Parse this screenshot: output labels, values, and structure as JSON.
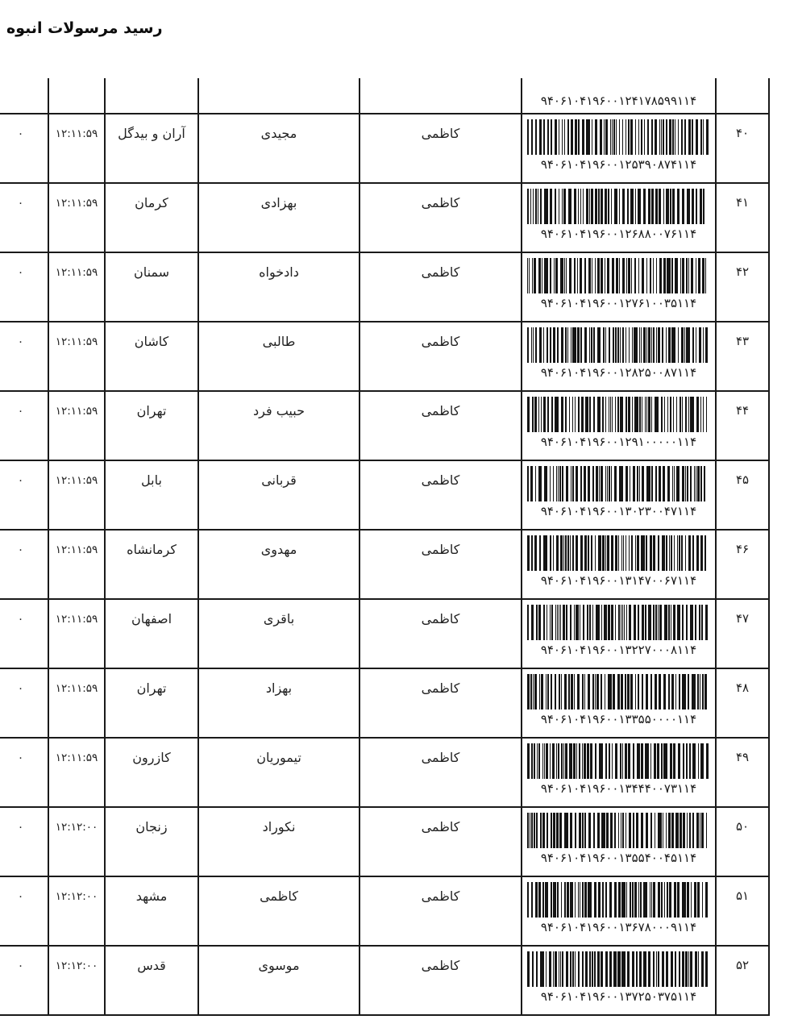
{
  "page": {
    "title": "رسید مرسولات انبوه"
  },
  "table": {
    "partial_row": {
      "code_display": "۹۴۰۶۱۰۴۱۹۶۰۰۱۲۴۱۷۸۵۹۹۱۱۴"
    },
    "rows": [
      {
        "row_no": "۴۰",
        "code_display": "۹۴۰۶۱۰۴۱۹۶۰۰۱۲۵۳۹۰۸۷۴۱۱۴",
        "sender": "کاظمی",
        "recipient": "مجیدی",
        "city": "آران و بیدگل",
        "time": "۱۲:۱۱:۵۹",
        "flag": "۰"
      },
      {
        "row_no": "۴۱",
        "code_display": "۹۴۰۶۱۰۴۱۹۶۰۰۱۲۶۸۸۰۰۷۶۱۱۴",
        "sender": "کاظمی",
        "recipient": "بهزادی",
        "city": "کرمان",
        "time": "۱۲:۱۱:۵۹",
        "flag": "۰"
      },
      {
        "row_no": "۴۲",
        "code_display": "۹۴۰۶۱۰۴۱۹۶۰۰۱۲۷۶۱۰۰۳۵۱۱۴",
        "sender": "کاظمی",
        "recipient": "دادخواه",
        "city": "سمنان",
        "time": "۱۲:۱۱:۵۹",
        "flag": "۰"
      },
      {
        "row_no": "۴۳",
        "code_display": "۹۴۰۶۱۰۴۱۹۶۰۰۱۲۸۲۵۰۰۸۷۱۱۴",
        "sender": "کاظمی",
        "recipient": "طالبی",
        "city": "کاشان",
        "time": "۱۲:۱۱:۵۹",
        "flag": "۰"
      },
      {
        "row_no": "۴۴",
        "code_display": "۹۴۰۶۱۰۴۱۹۶۰۰۱۲۹۱۰۰۰۰۰۱۱۴",
        "sender": "کاظمی",
        "recipient": "حبیب فرد",
        "city": "تهران",
        "time": "۱۲:۱۱:۵۹",
        "flag": "۰"
      },
      {
        "row_no": "۴۵",
        "code_display": "۹۴۰۶۱۰۴۱۹۶۰۰۱۳۰۲۳۰۰۴۷۱۱۴",
        "sender": "کاظمی",
        "recipient": "قربانی",
        "city": "بابل",
        "time": "۱۲:۱۱:۵۹",
        "flag": "۰"
      },
      {
        "row_no": "۴۶",
        "code_display": "۹۴۰۶۱۰۴۱۹۶۰۰۱۳۱۴۷۰۰۶۷۱۱۴",
        "sender": "کاظمی",
        "recipient": "مهدوی",
        "city": "کرمانشاه",
        "time": "۱۲:۱۱:۵۹",
        "flag": "۰"
      },
      {
        "row_no": "۴۷",
        "code_display": "۹۴۰۶۱۰۴۱۹۶۰۰۱۳۲۲۷۰۰۰۸۱۱۴",
        "sender": "کاظمی",
        "recipient": "باقری",
        "city": "اصفهان",
        "time": "۱۲:۱۱:۵۹",
        "flag": "۰"
      },
      {
        "row_no": "۴۸",
        "code_display": "۹۴۰۶۱۰۴۱۹۶۰۰۱۳۳۵۵۰۰۰۰۱۱۴",
        "sender": "کاظمی",
        "recipient": "بهزاد",
        "city": "تهران",
        "time": "۱۲:۱۱:۵۹",
        "flag": "۰"
      },
      {
        "row_no": "۴۹",
        "code_display": "۹۴۰۶۱۰۴۱۹۶۰۰۱۳۴۴۴۰۰۷۳۱۱۴",
        "sender": "کاظمی",
        "recipient": "تیموریان",
        "city": "کازرون",
        "time": "۱۲:۱۱:۵۹",
        "flag": "۰"
      },
      {
        "row_no": "۵۰",
        "code_display": "۹۴۰۶۱۰۴۱۹۶۰۰۱۳۵۵۴۰۰۴۵۱۱۴",
        "sender": "کاظمی",
        "recipient": "نکوراد",
        "city": "زنجان",
        "time": "۱۲:۱۲:۰۰",
        "flag": "۰"
      },
      {
        "row_no": "۵۱",
        "code_display": "۹۴۰۶۱۰۴۱۹۶۰۰۱۳۶۷۸۰۰۰۹۱۱۴",
        "sender": "کاظمی",
        "recipient": "کاظمی",
        "city": "مشهد",
        "time": "۱۲:۱۲:۰۰",
        "flag": "۰"
      },
      {
        "row_no": "۵۲",
        "code_display": "۹۴۰۶۱۰۴۱۹۶۰۰۱۳۷۲۵۰۳۷۵۱۱۴",
        "sender": "کاظمی",
        "recipient": "موسوی",
        "city": "قدس",
        "time": "۱۲:۱۲:۰۰",
        "flag": "۰"
      }
    ]
  }
}
